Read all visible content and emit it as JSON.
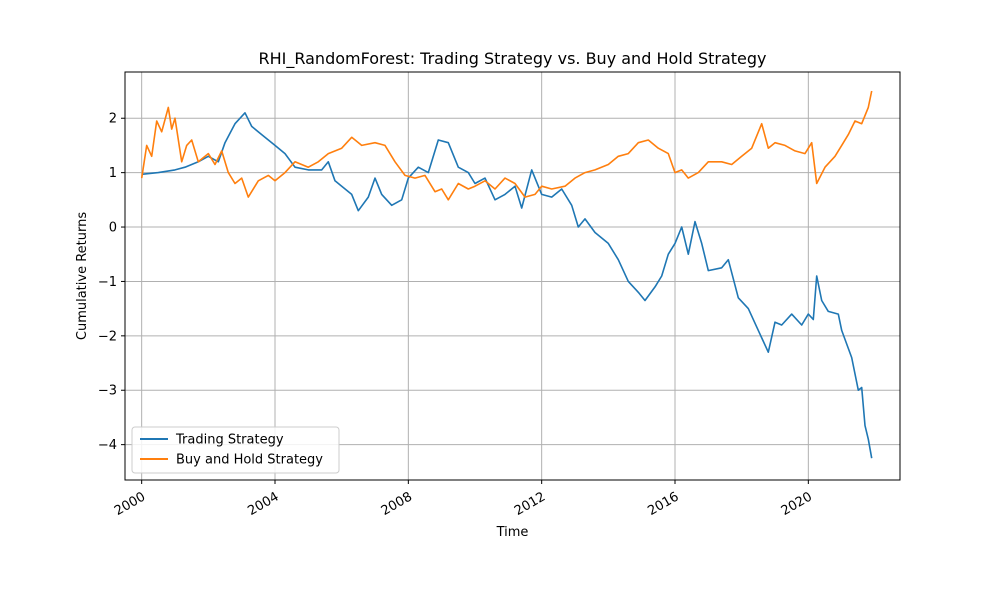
{
  "chart_data": {
    "type": "line",
    "title": "RHI_RandomForest: Trading Strategy vs. Buy and Hold Strategy",
    "xlabel": "Time",
    "ylabel": "Cumulative Returns",
    "xlim": [
      1999.5,
      2022.75
    ],
    "ylim": [
      -4.65,
      2.85
    ],
    "x_ticks": [
      2000,
      2004,
      2008,
      2012,
      2016,
      2020
    ],
    "x_tick_labels": [
      "2000",
      "2004",
      "2008",
      "2012",
      "2016",
      "2020"
    ],
    "y_ticks": [
      2,
      1,
      0,
      -1,
      -2,
      -3,
      -4
    ],
    "y_tick_labels": [
      "2",
      "1",
      "0",
      "−1",
      "−2",
      "−3",
      "−4"
    ],
    "grid": true,
    "legend_position": "lower-left",
    "series": [
      {
        "name": "Trading Strategy",
        "color": "#1f77b4",
        "points": [
          [
            2000.0,
            0.97
          ],
          [
            2000.5,
            1.0
          ],
          [
            2001.0,
            1.05
          ],
          [
            2001.3,
            1.1
          ],
          [
            2001.7,
            1.2
          ],
          [
            2002.0,
            1.3
          ],
          [
            2002.3,
            1.2
          ],
          [
            2002.5,
            1.55
          ],
          [
            2002.8,
            1.9
          ],
          [
            2003.1,
            2.1
          ],
          [
            2003.3,
            1.85
          ],
          [
            2003.6,
            1.7
          ],
          [
            2004.0,
            1.5
          ],
          [
            2004.3,
            1.35
          ],
          [
            2004.6,
            1.1
          ],
          [
            2005.0,
            1.05
          ],
          [
            2005.4,
            1.05
          ],
          [
            2005.6,
            1.2
          ],
          [
            2005.8,
            0.85
          ],
          [
            2006.0,
            0.75
          ],
          [
            2006.3,
            0.6
          ],
          [
            2006.5,
            0.3
          ],
          [
            2006.8,
            0.55
          ],
          [
            2007.0,
            0.9
          ],
          [
            2007.2,
            0.6
          ],
          [
            2007.5,
            0.4
          ],
          [
            2007.8,
            0.5
          ],
          [
            2008.0,
            0.9
          ],
          [
            2008.3,
            1.1
          ],
          [
            2008.6,
            1.0
          ],
          [
            2008.9,
            1.6
          ],
          [
            2009.2,
            1.55
          ],
          [
            2009.5,
            1.1
          ],
          [
            2009.8,
            1.0
          ],
          [
            2010.0,
            0.8
          ],
          [
            2010.3,
            0.9
          ],
          [
            2010.6,
            0.5
          ],
          [
            2010.9,
            0.6
          ],
          [
            2011.2,
            0.75
          ],
          [
            2011.4,
            0.35
          ],
          [
            2011.7,
            1.05
          ],
          [
            2012.0,
            0.6
          ],
          [
            2012.3,
            0.55
          ],
          [
            2012.6,
            0.7
          ],
          [
            2012.9,
            0.4
          ],
          [
            2013.1,
            0.0
          ],
          [
            2013.3,
            0.15
          ],
          [
            2013.6,
            -0.1
          ],
          [
            2014.0,
            -0.3
          ],
          [
            2014.3,
            -0.6
          ],
          [
            2014.6,
            -1.0
          ],
          [
            2014.9,
            -1.2
          ],
          [
            2015.1,
            -1.35
          ],
          [
            2015.4,
            -1.1
          ],
          [
            2015.6,
            -0.9
          ],
          [
            2015.8,
            -0.5
          ],
          [
            2016.0,
            -0.3
          ],
          [
            2016.2,
            0.0
          ],
          [
            2016.4,
            -0.5
          ],
          [
            2016.6,
            0.1
          ],
          [
            2016.8,
            -0.3
          ],
          [
            2017.0,
            -0.8
          ],
          [
            2017.4,
            -0.75
          ],
          [
            2017.6,
            -0.6
          ],
          [
            2017.9,
            -1.3
          ],
          [
            2018.2,
            -1.5
          ],
          [
            2018.5,
            -1.9
          ],
          [
            2018.8,
            -2.3
          ],
          [
            2019.0,
            -1.75
          ],
          [
            2019.2,
            -1.8
          ],
          [
            2019.5,
            -1.6
          ],
          [
            2019.8,
            -1.8
          ],
          [
            2020.0,
            -1.6
          ],
          [
            2020.15,
            -1.7
          ],
          [
            2020.25,
            -0.9
          ],
          [
            2020.4,
            -1.35
          ],
          [
            2020.6,
            -1.55
          ],
          [
            2020.9,
            -1.6
          ],
          [
            2021.0,
            -1.9
          ],
          [
            2021.3,
            -2.4
          ],
          [
            2021.5,
            -3.0
          ],
          [
            2021.6,
            -2.95
          ],
          [
            2021.7,
            -3.65
          ],
          [
            2021.8,
            -3.9
          ],
          [
            2021.9,
            -4.25
          ]
        ]
      },
      {
        "name": "Buy and Hold Strategy",
        "color": "#ff7f0e",
        "points": [
          [
            2000.0,
            0.9
          ],
          [
            2000.15,
            1.5
          ],
          [
            2000.3,
            1.3
          ],
          [
            2000.45,
            1.95
          ],
          [
            2000.6,
            1.75
          ],
          [
            2000.8,
            2.2
          ],
          [
            2000.9,
            1.8
          ],
          [
            2001.0,
            2.0
          ],
          [
            2001.2,
            1.2
          ],
          [
            2001.35,
            1.5
          ],
          [
            2001.5,
            1.6
          ],
          [
            2001.7,
            1.2
          ],
          [
            2002.0,
            1.35
          ],
          [
            2002.2,
            1.15
          ],
          [
            2002.4,
            1.4
          ],
          [
            2002.6,
            1.0
          ],
          [
            2002.8,
            0.8
          ],
          [
            2003.0,
            0.9
          ],
          [
            2003.2,
            0.55
          ],
          [
            2003.5,
            0.85
          ],
          [
            2003.8,
            0.95
          ],
          [
            2004.0,
            0.85
          ],
          [
            2004.3,
            1.0
          ],
          [
            2004.6,
            1.2
          ],
          [
            2005.0,
            1.1
          ],
          [
            2005.3,
            1.2
          ],
          [
            2005.6,
            1.35
          ],
          [
            2006.0,
            1.45
          ],
          [
            2006.3,
            1.65
          ],
          [
            2006.6,
            1.5
          ],
          [
            2007.0,
            1.55
          ],
          [
            2007.3,
            1.5
          ],
          [
            2007.6,
            1.2
          ],
          [
            2007.9,
            0.95
          ],
          [
            2008.2,
            0.9
          ],
          [
            2008.5,
            0.95
          ],
          [
            2008.8,
            0.65
          ],
          [
            2009.0,
            0.7
          ],
          [
            2009.2,
            0.5
          ],
          [
            2009.5,
            0.8
          ],
          [
            2009.8,
            0.7
          ],
          [
            2010.0,
            0.75
          ],
          [
            2010.3,
            0.85
          ],
          [
            2010.6,
            0.7
          ],
          [
            2010.9,
            0.9
          ],
          [
            2011.2,
            0.8
          ],
          [
            2011.5,
            0.55
          ],
          [
            2011.8,
            0.6
          ],
          [
            2012.0,
            0.75
          ],
          [
            2012.3,
            0.7
          ],
          [
            2012.7,
            0.75
          ],
          [
            2013.0,
            0.9
          ],
          [
            2013.3,
            1.0
          ],
          [
            2013.6,
            1.05
          ],
          [
            2014.0,
            1.15
          ],
          [
            2014.3,
            1.3
          ],
          [
            2014.6,
            1.35
          ],
          [
            2014.9,
            1.55
          ],
          [
            2015.2,
            1.6
          ],
          [
            2015.5,
            1.45
          ],
          [
            2015.8,
            1.35
          ],
          [
            2016.0,
            1.0
          ],
          [
            2016.2,
            1.05
          ],
          [
            2016.4,
            0.9
          ],
          [
            2016.7,
            1.0
          ],
          [
            2017.0,
            1.2
          ],
          [
            2017.4,
            1.2
          ],
          [
            2017.7,
            1.15
          ],
          [
            2018.0,
            1.3
          ],
          [
            2018.3,
            1.45
          ],
          [
            2018.6,
            1.9
          ],
          [
            2018.8,
            1.45
          ],
          [
            2019.0,
            1.55
          ],
          [
            2019.3,
            1.5
          ],
          [
            2019.6,
            1.4
          ],
          [
            2019.9,
            1.35
          ],
          [
            2020.1,
            1.55
          ],
          [
            2020.25,
            0.8
          ],
          [
            2020.5,
            1.1
          ],
          [
            2020.8,
            1.3
          ],
          [
            2021.0,
            1.5
          ],
          [
            2021.2,
            1.7
          ],
          [
            2021.4,
            1.95
          ],
          [
            2021.6,
            1.9
          ],
          [
            2021.8,
            2.2
          ],
          [
            2021.9,
            2.5
          ]
        ]
      }
    ]
  }
}
